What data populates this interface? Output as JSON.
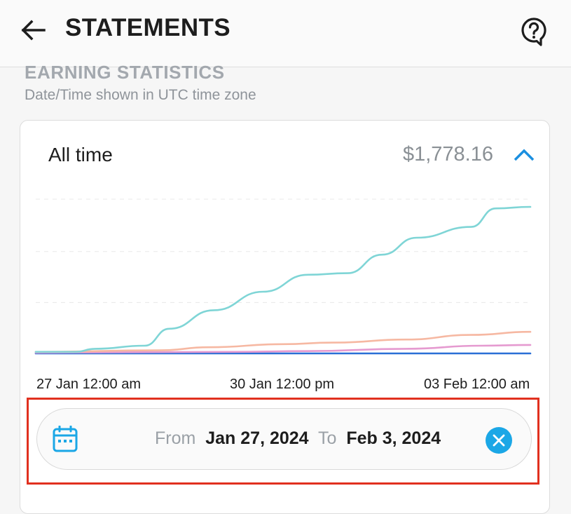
{
  "header": {
    "title": "STATEMENTS",
    "back_icon": "arrow-left-icon",
    "help_icon": "help-chat-icon"
  },
  "section": {
    "title": "EARNING STATISTICS",
    "subtitle": "Date/Time shown in UTC time zone"
  },
  "card": {
    "period_label": "All time",
    "total": "$1,778.16",
    "collapse_icon": "chevron-up-icon"
  },
  "chart_data": {
    "type": "line",
    "title": "",
    "xlabel": "",
    "ylabel": "",
    "x_tick_labels": [
      "27 Jan 12:00 am",
      "30 Jan 12:00 pm",
      "03 Feb 12:00 am"
    ],
    "grid": "horizontal-dashed",
    "legend": "none",
    "series": [
      {
        "color": "#7fd5d6",
        "x": [
          0,
          0.08,
          0.12,
          0.22,
          0.27,
          0.36,
          0.46,
          0.55,
          0.63,
          0.7,
          0.77,
          0.88,
          0.93,
          1.0
        ],
        "values": [
          0.01,
          0.01,
          0.03,
          0.05,
          0.16,
          0.28,
          0.4,
          0.51,
          0.52,
          0.64,
          0.75,
          0.82,
          0.94,
          0.95
        ]
      },
      {
        "color": "#f6b8a2",
        "x": [
          0,
          0.25,
          0.35,
          0.5,
          0.6,
          0.75,
          0.88,
          1.0
        ],
        "values": [
          0.01,
          0.02,
          0.04,
          0.06,
          0.07,
          0.09,
          0.12,
          0.14
        ]
      },
      {
        "color": "#e59ad0",
        "x": [
          0,
          0.4,
          0.55,
          0.75,
          0.9,
          1.0
        ],
        "values": [
          0.005,
          0.01,
          0.015,
          0.03,
          0.05,
          0.055
        ]
      },
      {
        "color": "#2a6fd6",
        "x": [
          0,
          1.0
        ],
        "values": [
          0.0,
          0.0
        ]
      }
    ]
  },
  "date_range": {
    "calendar_icon": "calendar-icon",
    "from_label": "From",
    "from_value": "Jan 27, 2024",
    "to_label": "To",
    "to_value": "Feb 3, 2024",
    "clear_icon": "close-circle-icon"
  }
}
